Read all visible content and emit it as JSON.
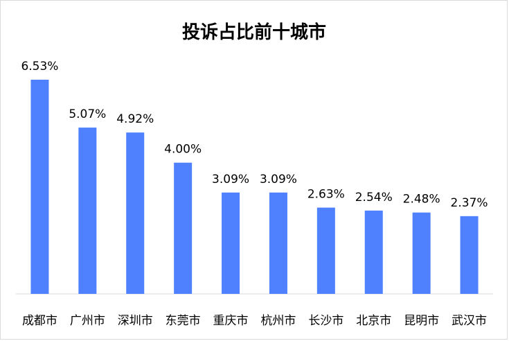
{
  "chart_data": {
    "type": "bar",
    "title": "投诉占比前十城市",
    "xlabel": "",
    "ylabel": "",
    "categories": [
      "成都市",
      "广州市",
      "深圳市",
      "东莞市",
      "重庆市",
      "杭州市",
      "长沙市",
      "北京市",
      "昆明市",
      "武汉市"
    ],
    "values": [
      6.53,
      5.07,
      4.92,
      4.0,
      3.09,
      3.09,
      2.63,
      2.54,
      2.48,
      2.37
    ],
    "value_labels": [
      "6.53%",
      "5.07%",
      "4.92%",
      "4.00%",
      "3.09%",
      "3.09%",
      "2.63%",
      "2.54%",
      "2.48%",
      "2.37%"
    ],
    "ylim": [
      0,
      6.53
    ],
    "grid": false,
    "legend": "none",
    "bar_color": "#4f81ff",
    "axis_color": "#d9d9d9"
  }
}
